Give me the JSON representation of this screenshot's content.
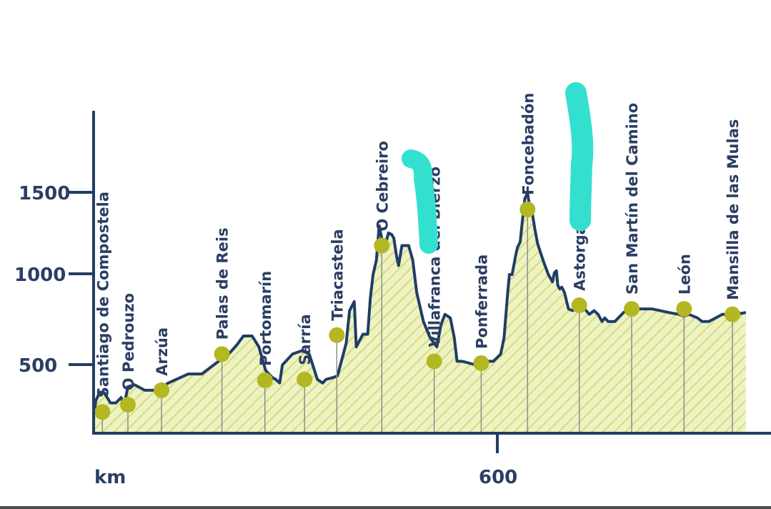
{
  "chart_data": {
    "type": "area",
    "title": "",
    "xlabel": "km",
    "ylabel": "",
    "ylim": [
      0,
      2000
    ],
    "y_ticks": [
      "1500",
      "1000",
      "500"
    ],
    "x_ticks": [
      "600"
    ],
    "colors": {
      "axis": "#1f3d66",
      "text": "#2b3e63",
      "fill": "#eef2c3",
      "hatch": "#d2dd7c",
      "marker": "#b3b722",
      "highlight": "#33e0d0"
    },
    "profile": [
      [
        0,
        230
      ],
      [
        2,
        300
      ],
      [
        8,
        350
      ],
      [
        15,
        345
      ],
      [
        24,
        290
      ],
      [
        32,
        290
      ],
      [
        40,
        320
      ],
      [
        44,
        270
      ],
      [
        50,
        380
      ],
      [
        60,
        390
      ],
      [
        75,
        360
      ],
      [
        95,
        360
      ],
      [
        110,
        400
      ],
      [
        140,
        450
      ],
      [
        160,
        450
      ],
      [
        185,
        520
      ],
      [
        200,
        560
      ],
      [
        212,
        610
      ],
      [
        222,
        660
      ],
      [
        235,
        660
      ],
      [
        245,
        600
      ],
      [
        255,
        470
      ],
      [
        265,
        430
      ],
      [
        270,
        420
      ],
      [
        276,
        400
      ],
      [
        280,
        500
      ],
      [
        295,
        560
      ],
      [
        310,
        580
      ],
      [
        320,
        560
      ],
      [
        332,
        420
      ],
      [
        340,
        400
      ],
      [
        345,
        420
      ],
      [
        355,
        430
      ],
      [
        362,
        440
      ],
      [
        375,
        620
      ],
      [
        380,
        800
      ],
      [
        387,
        850
      ],
      [
        390,
        600
      ],
      [
        400,
        670
      ],
      [
        407,
        670
      ],
      [
        411,
        870
      ],
      [
        415,
        1000
      ],
      [
        420,
        1080
      ],
      [
        424,
        1270
      ],
      [
        428,
        1200
      ],
      [
        432,
        1150
      ],
      [
        438,
        1230
      ],
      [
        443,
        1220
      ],
      [
        446,
        1200
      ],
      [
        450,
        1100
      ],
      [
        453,
        1050
      ],
      [
        458,
        1160
      ],
      [
        462,
        1160
      ],
      [
        468,
        1160
      ],
      [
        474,
        1080
      ],
      [
        480,
        900
      ],
      [
        490,
        740
      ],
      [
        500,
        650
      ],
      [
        510,
        600
      ],
      [
        516,
        720
      ],
      [
        522,
        780
      ],
      [
        530,
        760
      ],
      [
        536,
        650
      ],
      [
        540,
        520
      ],
      [
        548,
        520
      ],
      [
        568,
        500
      ],
      [
        585,
        520
      ],
      [
        594,
        520
      ],
      [
        605,
        560
      ],
      [
        610,
        650
      ],
      [
        615,
        880
      ],
      [
        618,
        1000
      ],
      [
        622,
        1000
      ],
      [
        627,
        1100
      ],
      [
        630,
        1150
      ],
      [
        634,
        1180
      ],
      [
        638,
        1320
      ],
      [
        641,
        1420
      ],
      [
        645,
        1450
      ],
      [
        648,
        1380
      ],
      [
        652,
        1340
      ],
      [
        656,
        1250
      ],
      [
        660,
        1170
      ],
      [
        668,
        1080
      ],
      [
        676,
        1000
      ],
      [
        682,
        960
      ],
      [
        685,
        1010
      ],
      [
        688,
        1020
      ],
      [
        690,
        940
      ],
      [
        693,
        920
      ],
      [
        696,
        930
      ],
      [
        700,
        900
      ],
      [
        706,
        810
      ],
      [
        712,
        800
      ],
      [
        720,
        820
      ],
      [
        730,
        810
      ],
      [
        737,
        780
      ],
      [
        744,
        800
      ],
      [
        750,
        780
      ],
      [
        756,
        740
      ],
      [
        760,
        760
      ],
      [
        765,
        740
      ],
      [
        775,
        740
      ],
      [
        788,
        790
      ],
      [
        800,
        810
      ],
      [
        830,
        810
      ],
      [
        855,
        790
      ],
      [
        870,
        780
      ],
      [
        878,
        770
      ],
      [
        885,
        780
      ],
      [
        898,
        760
      ],
      [
        905,
        740
      ],
      [
        915,
        740
      ],
      [
        925,
        760
      ],
      [
        935,
        780
      ],
      [
        955,
        780
      ],
      [
        970,
        790
      ]
    ],
    "stops": [
      {
        "name": "Santiago de Compostela",
        "km": 12,
        "alt": 240
      },
      {
        "name": "O Pedrouzo",
        "km": 50,
        "alt": 280
      },
      {
        "name": "Arzúa",
        "km": 100,
        "alt": 360
      },
      {
        "name": "Palas de Reis",
        "km": 190,
        "alt": 560
      },
      {
        "name": "Portomarín",
        "km": 254,
        "alt": 415
      },
      {
        "name": "Sarría",
        "km": 313,
        "alt": 420
      },
      {
        "name": "Triacastela",
        "km": 361,
        "alt": 665
      },
      {
        "name": "O Cebreiro",
        "km": 428,
        "alt": 1160
      },
      {
        "name": "Villafranca del Bierzo",
        "km": 506,
        "alt": 520
      },
      {
        "name": "Ponferrada",
        "km": 576,
        "alt": 510
      },
      {
        "name": "Foncebadón",
        "km": 645,
        "alt": 1360
      },
      {
        "name": "Astorga",
        "km": 722,
        "alt": 830
      },
      {
        "name": "San Martín del Camino",
        "km": 800,
        "alt": 810
      },
      {
        "name": "León",
        "km": 878,
        "alt": 810
      },
      {
        "name": "Mansilla de las Mulas",
        "km": 950,
        "alt": 780
      }
    ]
  }
}
